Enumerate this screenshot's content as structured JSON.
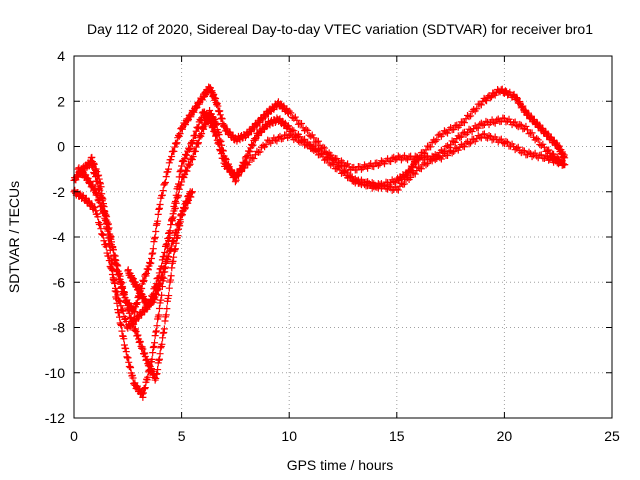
{
  "chart_data": {
    "type": "scatter",
    "title": "Day 112 of 2020, Sidereal Day-to-day VTEC variation (SDTVAR) for receiver bro1",
    "xlabel": "GPS time / hours",
    "ylabel": "SDTVAR / TECUs",
    "xlim": [
      0,
      25
    ],
    "ylim": [
      -12,
      4
    ],
    "xticks": [
      0,
      5,
      10,
      15,
      20,
      25
    ],
    "yticks": [
      -12,
      -10,
      -8,
      -6,
      -4,
      -2,
      0,
      2,
      4
    ],
    "grid": true,
    "marker": "+",
    "color": "#ff0000",
    "series": [
      {
        "name": "track-1",
        "x": [
          0.0,
          0.4,
          0.8,
          1.2,
          1.6,
          2.0,
          2.4,
          2.8,
          3.2,
          3.6,
          4.0,
          4.5,
          5.0,
          5.5,
          6.0,
          6.3,
          6.6,
          7.0,
          7.5,
          8.0,
          8.5,
          9.0,
          9.5,
          10.0,
          11.0,
          12.0,
          13.0,
          14.0,
          15.0,
          15.5,
          16.0,
          17.0,
          18.0,
          19.0,
          19.8,
          20.5,
          21.0,
          21.5,
          22.0,
          22.5,
          22.8
        ],
        "y": [
          -1.5,
          -1.0,
          -0.7,
          -2.0,
          -3.5,
          -5.5,
          -6.8,
          -7.3,
          -6.0,
          -5.0,
          -2.5,
          -0.5,
          0.8,
          1.5,
          2.2,
          2.6,
          2.0,
          0.8,
          0.3,
          0.5,
          1.0,
          1.5,
          1.9,
          1.5,
          0.5,
          -0.5,
          -1.5,
          -1.8,
          -1.5,
          -1.2,
          -0.5,
          0.5,
          1.0,
          2.0,
          2.5,
          2.2,
          1.5,
          1.0,
          0.5,
          0.0,
          -0.5
        ]
      },
      {
        "name": "track-2",
        "x": [
          0.0,
          0.5,
          1.0,
          1.5,
          2.0,
          2.5,
          3.0,
          3.5,
          4.0,
          4.5,
          5.0,
          5.5,
          6.0,
          6.3,
          6.6,
          7.0,
          7.5,
          8.0,
          8.5,
          9.0,
          9.5,
          10.0,
          11.0,
          12.0,
          13.0,
          14.0,
          15.0,
          16.0,
          17.0,
          18.0,
          19.0,
          20.0,
          21.0,
          22.0,
          22.8
        ],
        "y": [
          -2.0,
          -2.3,
          -2.8,
          -4.5,
          -6.5,
          -8.0,
          -7.5,
          -7.0,
          -5.5,
          -3.5,
          -1.5,
          -0.5,
          0.8,
          1.5,
          1.0,
          -0.5,
          -1.5,
          -0.5,
          0.5,
          1.0,
          1.2,
          0.8,
          0.0,
          -0.8,
          -1.5,
          -1.7,
          -1.9,
          -1.0,
          -0.3,
          0.5,
          1.0,
          1.2,
          0.8,
          -0.2,
          -0.8
        ]
      },
      {
        "name": "track-3",
        "x": [
          0.8,
          1.2,
          1.6,
          2.0,
          2.4,
          2.8,
          3.2,
          3.6,
          4.0,
          4.5,
          5.0,
          5.5,
          6.0,
          6.3,
          6.6,
          7.0,
          7.5,
          8.0,
          9.0,
          10.0,
          11.0,
          12.0,
          13.0,
          14.0,
          15.0,
          16.0,
          17.0,
          18.0,
          19.0,
          20.0,
          21.0,
          22.0,
          22.8
        ],
        "y": [
          -0.5,
          -1.5,
          -4.0,
          -7.0,
          -9.0,
          -10.5,
          -11.0,
          -9.5,
          -7.0,
          -3.5,
          -0.8,
          0.2,
          1.5,
          1.2,
          0.5,
          -0.8,
          -1.3,
          -0.8,
          0.2,
          0.5,
          0.0,
          -0.5,
          -1.0,
          -0.8,
          -0.5,
          -0.5,
          -0.5,
          0.0,
          0.5,
          0.2,
          -0.3,
          -0.5,
          -0.8
        ]
      },
      {
        "name": "track-4",
        "x": [
          0.2,
          0.6,
          1.0,
          1.4,
          1.8,
          2.2,
          2.6,
          3.0,
          3.4,
          3.8,
          4.2,
          4.6,
          5.0,
          5.4
        ],
        "y": [
          -1.0,
          -1.4,
          -2.0,
          -3.0,
          -4.5,
          -6.0,
          -7.5,
          -8.5,
          -9.5,
          -10.3,
          -8.0,
          -5.0,
          -3.0,
          -2.0
        ]
      },
      {
        "name": "track-5",
        "x": [
          2.5,
          2.8,
          3.1,
          3.4,
          3.7,
          4.0,
          4.5,
          5.0,
          5.5
        ],
        "y": [
          -5.5,
          -6.0,
          -6.5,
          -7.0,
          -6.8,
          -6.0,
          -4.5,
          -3.0,
          -2.0
        ]
      }
    ]
  }
}
